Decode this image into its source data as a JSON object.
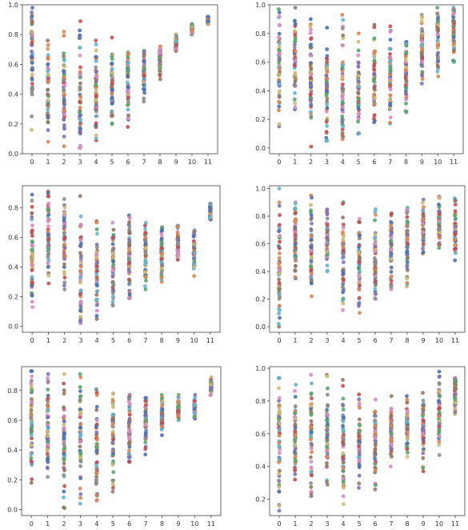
{
  "colors": [
    "#4c72b0",
    "#dd8452",
    "#55a868",
    "#c44e52",
    "#8172b3",
    "#937860",
    "#da8bc3",
    "#8c8c8c",
    "#ccb974",
    "#64b5cd"
  ],
  "chart_data": [
    {
      "type": "scatter",
      "title": "",
      "xlabel": "",
      "ylabel": "",
      "x_ticks": [
        "0",
        "1",
        "2",
        "3",
        "4",
        "5",
        "6",
        "7",
        "8",
        "9",
        "10",
        "11"
      ],
      "y_ticks": [
        "0.0",
        "0.2",
        "0.4",
        "0.6",
        "0.8",
        "1.0"
      ],
      "xlim": [
        -0.6,
        11.6
      ],
      "ylim": [
        0.0,
        1.0
      ],
      "grid": false,
      "columns": [
        {
          "x": 0,
          "min": 0.16,
          "max": 0.98,
          "center": 0.68
        },
        {
          "x": 1,
          "min": 0.08,
          "max": 0.76,
          "center": 0.45
        },
        {
          "x": 2,
          "min": 0.05,
          "max": 0.82,
          "center": 0.45
        },
        {
          "x": 3,
          "min": 0.04,
          "max": 0.89,
          "center": 0.3
        },
        {
          "x": 4,
          "min": 0.09,
          "max": 0.76,
          "center": 0.45
        },
        {
          "x": 5,
          "min": 0.2,
          "max": 0.78,
          "center": 0.45
        },
        {
          "x": 6,
          "min": 0.18,
          "max": 0.68,
          "center": 0.5
        },
        {
          "x": 7,
          "min": 0.35,
          "max": 0.69,
          "center": 0.58
        },
        {
          "x": 8,
          "min": 0.5,
          "max": 0.72,
          "center": 0.62
        },
        {
          "x": 9,
          "min": 0.69,
          "max": 0.8,
          "center": 0.75
        },
        {
          "x": 10,
          "min": 0.8,
          "max": 0.87,
          "center": 0.84
        },
        {
          "x": 11,
          "min": 0.87,
          "max": 0.92,
          "center": 0.9
        }
      ]
    },
    {
      "type": "scatter",
      "title": "",
      "xlabel": "",
      "ylabel": "",
      "x_ticks": [
        "0",
        "1",
        "2",
        "3",
        "4",
        "5",
        "6",
        "7",
        "8",
        "9",
        "10",
        "11"
      ],
      "y_ticks": [
        "0.0",
        "0.2",
        "0.4",
        "0.6",
        "0.8",
        "1.0"
      ],
      "xlim": [
        -0.6,
        11.6
      ],
      "ylim": [
        -0.04,
        1.0
      ],
      "grid": false,
      "columns": [
        {
          "x": 0,
          "min": 0.15,
          "max": 0.97,
          "center": 0.6
        },
        {
          "x": 1,
          "min": 0.27,
          "max": 0.98,
          "center": 0.6
        },
        {
          "x": 2,
          "min": 0.01,
          "max": 0.9,
          "center": 0.45
        },
        {
          "x": 3,
          "min": 0.05,
          "max": 0.84,
          "center": 0.4
        },
        {
          "x": 4,
          "min": 0.06,
          "max": 0.93,
          "center": 0.4
        },
        {
          "x": 5,
          "min": 0.1,
          "max": 0.8,
          "center": 0.4
        },
        {
          "x": 6,
          "min": 0.18,
          "max": 0.86,
          "center": 0.5
        },
        {
          "x": 7,
          "min": 0.17,
          "max": 0.85,
          "center": 0.48
        },
        {
          "x": 8,
          "min": 0.25,
          "max": 0.74,
          "center": 0.55
        },
        {
          "x": 9,
          "min": 0.45,
          "max": 0.93,
          "center": 0.7
        },
        {
          "x": 10,
          "min": 0.5,
          "max": 0.98,
          "center": 0.75
        },
        {
          "x": 11,
          "min": 0.6,
          "max": 0.98,
          "center": 0.8
        }
      ]
    },
    {
      "type": "scatter",
      "title": "",
      "xlabel": "",
      "ylabel": "",
      "x_ticks": [
        "0",
        "1",
        "2",
        "3",
        "4",
        "5",
        "6",
        "7",
        "8",
        "9",
        "10",
        "11"
      ],
      "y_ticks": [
        "0.0",
        "0.2",
        "0.4",
        "0.6",
        "0.8"
      ],
      "xlim": [
        -0.6,
        11.6
      ],
      "ylim": [
        -0.04,
        0.95
      ],
      "grid": false,
      "columns": [
        {
          "x": 0,
          "min": 0.13,
          "max": 0.89,
          "center": 0.5
        },
        {
          "x": 1,
          "min": 0.29,
          "max": 0.91,
          "center": 0.6
        },
        {
          "x": 2,
          "min": 0.25,
          "max": 0.86,
          "center": 0.6
        },
        {
          "x": 3,
          "min": 0.02,
          "max": 0.88,
          "center": 0.35
        },
        {
          "x": 4,
          "min": 0.05,
          "max": 0.71,
          "center": 0.35
        },
        {
          "x": 5,
          "min": 0.14,
          "max": 0.7,
          "center": 0.4
        },
        {
          "x": 6,
          "min": 0.19,
          "max": 0.75,
          "center": 0.45
        },
        {
          "x": 7,
          "min": 0.25,
          "max": 0.7,
          "center": 0.5
        },
        {
          "x": 8,
          "min": 0.3,
          "max": 0.67,
          "center": 0.5
        },
        {
          "x": 9,
          "min": 0.45,
          "max": 0.68,
          "center": 0.57
        },
        {
          "x": 10,
          "min": 0.34,
          "max": 0.65,
          "center": 0.5
        },
        {
          "x": 11,
          "min": 0.72,
          "max": 0.83,
          "center": 0.77
        }
      ]
    },
    {
      "type": "scatter",
      "title": "",
      "xlabel": "",
      "ylabel": "",
      "x_ticks": [
        "0",
        "1",
        "2",
        "3",
        "4",
        "5",
        "6",
        "7",
        "8",
        "9",
        "10",
        "11"
      ],
      "y_ticks": [
        "0.0",
        "0.2",
        "0.4",
        "0.6",
        "0.8",
        "1.0"
      ],
      "xlim": [
        -0.6,
        11.6
      ],
      "ylim": [
        -0.04,
        1.02
      ],
      "grid": false,
      "columns": [
        {
          "x": 0,
          "min": 0.0,
          "max": 1.0,
          "center": 0.4
        },
        {
          "x": 1,
          "min": 0.35,
          "max": 0.9,
          "center": 0.65
        },
        {
          "x": 2,
          "min": 0.22,
          "max": 0.95,
          "center": 0.6
        },
        {
          "x": 3,
          "min": 0.4,
          "max": 0.85,
          "center": 0.65
        },
        {
          "x": 4,
          "min": 0.12,
          "max": 0.9,
          "center": 0.5
        },
        {
          "x": 5,
          "min": 0.1,
          "max": 0.78,
          "center": 0.4
        },
        {
          "x": 6,
          "min": 0.2,
          "max": 0.85,
          "center": 0.45
        },
        {
          "x": 7,
          "min": 0.27,
          "max": 0.82,
          "center": 0.6
        },
        {
          "x": 8,
          "min": 0.29,
          "max": 0.86,
          "center": 0.65
        },
        {
          "x": 9,
          "min": 0.53,
          "max": 0.92,
          "center": 0.72
        },
        {
          "x": 10,
          "min": 0.57,
          "max": 0.94,
          "center": 0.75
        },
        {
          "x": 11,
          "min": 0.48,
          "max": 0.93,
          "center": 0.7
        }
      ]
    },
    {
      "type": "scatter",
      "title": "",
      "xlabel": "",
      "ylabel": "",
      "x_ticks": [
        "0",
        "1",
        "2",
        "3",
        "4",
        "5",
        "6",
        "7",
        "8",
        "9",
        "10",
        "11"
      ],
      "y_ticks": [
        "0.0",
        "0.2",
        "0.4",
        "0.6",
        "0.8"
      ],
      "xlim": [
        -0.6,
        11.6
      ],
      "ylim": [
        -0.04,
        0.96
      ],
      "grid": false,
      "columns": [
        {
          "x": 0,
          "min": 0.18,
          "max": 0.93,
          "center": 0.6
        },
        {
          "x": 1,
          "min": 0.22,
          "max": 0.91,
          "center": 0.55
        },
        {
          "x": 2,
          "min": 0.01,
          "max": 0.91,
          "center": 0.45
        },
        {
          "x": 3,
          "min": 0.04,
          "max": 0.91,
          "center": 0.45
        },
        {
          "x": 4,
          "min": 0.06,
          "max": 0.81,
          "center": 0.4
        },
        {
          "x": 5,
          "min": 0.12,
          "max": 0.78,
          "center": 0.5
        },
        {
          "x": 6,
          "min": 0.32,
          "max": 0.77,
          "center": 0.55
        },
        {
          "x": 7,
          "min": 0.37,
          "max": 0.75,
          "center": 0.6
        },
        {
          "x": 8,
          "min": 0.5,
          "max": 0.77,
          "center": 0.63
        },
        {
          "x": 9,
          "min": 0.6,
          "max": 0.77,
          "center": 0.68
        },
        {
          "x": 10,
          "min": 0.61,
          "max": 0.77,
          "center": 0.69
        },
        {
          "x": 11,
          "min": 0.77,
          "max": 0.89,
          "center": 0.83
        }
      ]
    },
    {
      "type": "scatter",
      "title": "",
      "xlabel": "",
      "ylabel": "",
      "x_ticks": [
        "0",
        "1",
        "2",
        "3",
        "4",
        "5",
        "6",
        "7",
        "8",
        "9",
        "10",
        "11"
      ],
      "y_ticks": [
        "0.2",
        "0.4",
        "0.6",
        "0.8",
        "1.0"
      ],
      "xlim": [
        -0.6,
        11.6
      ],
      "ylim": [
        0.1,
        1.01
      ],
      "grid": false,
      "columns": [
        {
          "x": 0,
          "min": 0.13,
          "max": 0.94,
          "center": 0.6
        },
        {
          "x": 1,
          "min": 0.32,
          "max": 0.9,
          "center": 0.6
        },
        {
          "x": 2,
          "min": 0.22,
          "max": 0.96,
          "center": 0.55
        },
        {
          "x": 3,
          "min": 0.29,
          "max": 0.96,
          "center": 0.6
        },
        {
          "x": 4,
          "min": 0.17,
          "max": 0.93,
          "center": 0.5
        },
        {
          "x": 5,
          "min": 0.27,
          "max": 0.84,
          "center": 0.55
        },
        {
          "x": 6,
          "min": 0.26,
          "max": 0.81,
          "center": 0.55
        },
        {
          "x": 7,
          "min": 0.4,
          "max": 0.83,
          "center": 0.62
        },
        {
          "x": 8,
          "min": 0.46,
          "max": 0.83,
          "center": 0.65
        },
        {
          "x": 9,
          "min": 0.37,
          "max": 0.85,
          "center": 0.65
        },
        {
          "x": 10,
          "min": 0.47,
          "max": 0.98,
          "center": 0.75
        },
        {
          "x": 11,
          "min": 0.72,
          "max": 0.94,
          "center": 0.85
        }
      ]
    }
  ]
}
